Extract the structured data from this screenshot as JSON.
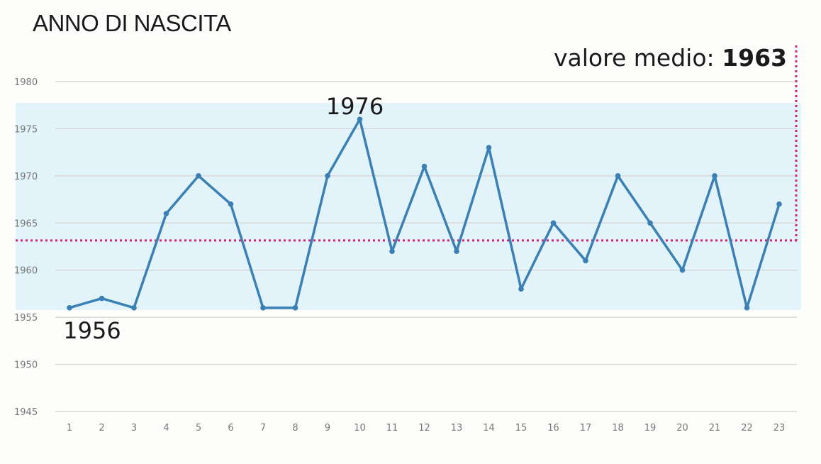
{
  "chart_data": {
    "type": "line",
    "title": "ANNO DI NASCITA",
    "x": [
      1,
      2,
      3,
      4,
      5,
      6,
      7,
      8,
      9,
      10,
      11,
      12,
      13,
      14,
      15,
      16,
      17,
      18,
      19,
      20,
      21,
      22,
      23
    ],
    "series": [
      {
        "values": [
          1956,
          1957,
          1956,
          1966,
          1970,
          1967,
          1956,
          1956,
          1970,
          1976,
          1962,
          1971,
          1962,
          1973,
          1958,
          1965,
          1961,
          1970,
          1965,
          1960,
          1970,
          1956,
          1967
        ]
      }
    ],
    "ylim": [
      1945,
      1980
    ],
    "yticks": [
      1945,
      1950,
      1955,
      1960,
      1965,
      1970,
      1975,
      1980
    ],
    "band": [
      1956,
      1976
    ],
    "mean": 1963,
    "mean_label_prefix": "valore medio:",
    "mean_label_value": "1963",
    "annotations": {
      "max": "1976",
      "min": "1956"
    },
    "colors": {
      "line": "#3a80b4",
      "band": "#e2f3fa",
      "mean": "#d4237a",
      "grid": "#d8d8d8"
    },
    "grid": true
  }
}
